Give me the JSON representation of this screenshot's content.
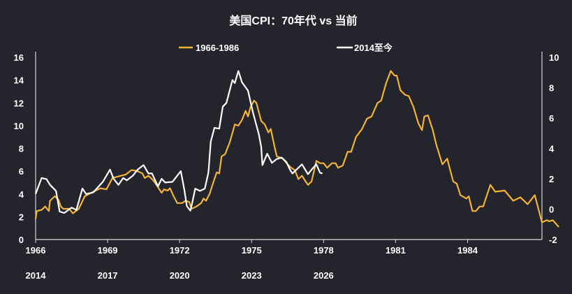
{
  "chart_data": {
    "type": "line",
    "title": "美国CPI：70年代 vs 当前",
    "legend_placement": "top",
    "grid": false,
    "x_axis_primary": {
      "ticks": [
        "1966",
        "1969",
        "1972",
        "1975",
        "1978",
        "1981",
        "1984"
      ],
      "range": [
        1966,
        1987.1
      ]
    },
    "x_axis_secondary": {
      "ticks": [
        "2014",
        "2017",
        "2020",
        "2023",
        "2026"
      ],
      "range": [
        2014,
        2035.1
      ]
    },
    "y_axis_left": {
      "range": [
        0,
        16
      ],
      "ticks": [
        "0",
        "2",
        "4",
        "6",
        "8",
        "10",
        "12",
        "14",
        "16"
      ]
    },
    "y_axis_right": {
      "range": [
        -2,
        10
      ],
      "ticks": [
        "-2",
        "0",
        "2",
        "4",
        "6",
        "8",
        "10"
      ]
    },
    "series": [
      {
        "name": "1966-1986",
        "color": "#f5b236",
        "axis": "left",
        "x_axis": "primary",
        "points": [
          [
            1966.0,
            1.8
          ],
          [
            1966.05,
            2.5
          ],
          [
            1966.25,
            2.6
          ],
          [
            1966.4,
            2.9
          ],
          [
            1966.55,
            2.5
          ],
          [
            1966.6,
            3.4
          ],
          [
            1966.8,
            3.8
          ],
          [
            1966.95,
            3.5
          ],
          [
            1967.05,
            2.9
          ],
          [
            1967.15,
            2.7
          ],
          [
            1967.4,
            2.7
          ],
          [
            1967.55,
            2.3
          ],
          [
            1967.8,
            2.7
          ],
          [
            1968.05,
            3.8
          ],
          [
            1968.4,
            4.2
          ],
          [
            1968.7,
            4.5
          ],
          [
            1968.95,
            4.4
          ],
          [
            1969.2,
            5.4
          ],
          [
            1969.55,
            5.6
          ],
          [
            1969.75,
            5.7
          ],
          [
            1970.0,
            6.1
          ],
          [
            1970.25,
            6.0
          ],
          [
            1970.45,
            5.8
          ],
          [
            1970.55,
            5.4
          ],
          [
            1970.7,
            5.6
          ],
          [
            1970.9,
            5.2
          ],
          [
            1971.1,
            4.6
          ],
          [
            1971.25,
            4.1
          ],
          [
            1971.35,
            4.4
          ],
          [
            1971.5,
            4.3
          ],
          [
            1971.6,
            4.5
          ],
          [
            1971.75,
            3.8
          ],
          [
            1971.9,
            3.2
          ],
          [
            1972.1,
            3.2
          ],
          [
            1972.25,
            3.4
          ],
          [
            1972.4,
            3.3
          ],
          [
            1972.5,
            2.7
          ],
          [
            1972.7,
            2.9
          ],
          [
            1972.9,
            3.2
          ],
          [
            1973.0,
            3.6
          ],
          [
            1973.1,
            3.4
          ],
          [
            1973.25,
            4.0
          ],
          [
            1973.4,
            5.0
          ],
          [
            1973.55,
            5.9
          ],
          [
            1973.65,
            5.8
          ],
          [
            1973.75,
            7.3
          ],
          [
            1973.9,
            7.5
          ],
          [
            1974.1,
            8.6
          ],
          [
            1974.3,
            10.1
          ],
          [
            1974.45,
            10.0
          ],
          [
            1974.6,
            10.5
          ],
          [
            1974.75,
            11.3
          ],
          [
            1974.85,
            10.8
          ],
          [
            1974.95,
            11.6
          ],
          [
            1975.1,
            12.2
          ],
          [
            1975.2,
            12.0
          ],
          [
            1975.4,
            10.4
          ],
          [
            1975.55,
            10.1
          ],
          [
            1975.7,
            9.4
          ],
          [
            1975.8,
            9.7
          ],
          [
            1975.95,
            8.2
          ],
          [
            1976.05,
            7.3
          ],
          [
            1976.3,
            7.1
          ],
          [
            1976.5,
            6.6
          ],
          [
            1976.65,
            6.3
          ],
          [
            1976.8,
            6.1
          ],
          [
            1976.95,
            5.3
          ],
          [
            1977.1,
            5.6
          ],
          [
            1977.25,
            5.1
          ],
          [
            1977.35,
            4.8
          ],
          [
            1977.5,
            5.1
          ],
          [
            1977.7,
            6.9
          ],
          [
            1977.85,
            6.7
          ],
          [
            1978.0,
            6.7
          ],
          [
            1978.15,
            6.3
          ],
          [
            1978.35,
            6.7
          ],
          [
            1978.5,
            6.7
          ],
          [
            1978.6,
            6.3
          ],
          [
            1978.8,
            6.5
          ],
          [
            1979.0,
            7.7
          ],
          [
            1979.15,
            7.7
          ],
          [
            1979.35,
            9.0
          ],
          [
            1979.6,
            9.7
          ],
          [
            1979.8,
            10.6
          ],
          [
            1980.0,
            10.8
          ],
          [
            1980.25,
            12.0
          ],
          [
            1980.4,
            12.2
          ],
          [
            1980.6,
            13.7
          ],
          [
            1980.8,
            14.8
          ],
          [
            1980.95,
            14.4
          ],
          [
            1981.05,
            14.4
          ],
          [
            1981.2,
            13.1
          ],
          [
            1981.4,
            12.7
          ],
          [
            1981.55,
            12.6
          ],
          [
            1981.75,
            11.6
          ],
          [
            1981.95,
            10.2
          ],
          [
            1982.1,
            9.6
          ],
          [
            1982.2,
            10.8
          ],
          [
            1982.35,
            10.9
          ],
          [
            1982.55,
            9.6
          ],
          [
            1982.7,
            8.3
          ],
          [
            1982.95,
            6.6
          ],
          [
            1983.15,
            7.1
          ],
          [
            1983.4,
            5.1
          ],
          [
            1983.55,
            4.9
          ],
          [
            1983.7,
            3.9
          ],
          [
            1983.95,
            3.6
          ],
          [
            1984.05,
            3.8
          ],
          [
            1984.2,
            2.5
          ],
          [
            1984.35,
            2.5
          ],
          [
            1984.5,
            2.9
          ],
          [
            1984.65,
            2.9
          ],
          [
            1984.95,
            4.8
          ],
          [
            1985.15,
            4.2
          ],
          [
            1985.55,
            4.3
          ],
          [
            1985.9,
            3.4
          ],
          [
            1986.2,
            3.7
          ],
          [
            1986.5,
            3.1
          ],
          [
            1986.8,
            3.9
          ],
          [
            1987.1,
            1.5
          ],
          [
            1987.3,
            1.7
          ],
          [
            1987.4,
            1.6
          ],
          [
            1987.55,
            1.7
          ],
          [
            1987.8,
            1.1
          ]
        ]
      },
      {
        "name": "2014至今",
        "color": "#ffffff",
        "axis": "right",
        "x_axis": "secondary",
        "points": [
          [
            2014.0,
            1.0
          ],
          [
            2014.25,
            2.05
          ],
          [
            2014.45,
            1.98
          ],
          [
            2014.6,
            1.6
          ],
          [
            2014.85,
            1.2
          ],
          [
            2015.0,
            -0.16
          ],
          [
            2015.2,
            -0.25
          ],
          [
            2015.5,
            0.1
          ],
          [
            2015.7,
            -0.05
          ],
          [
            2015.95,
            1.36
          ],
          [
            2016.1,
            1.0
          ],
          [
            2016.4,
            1.1
          ],
          [
            2016.6,
            1.45
          ],
          [
            2016.8,
            1.8
          ],
          [
            2017.1,
            2.6
          ],
          [
            2017.25,
            2.0
          ],
          [
            2017.45,
            1.6
          ],
          [
            2017.65,
            2.05
          ],
          [
            2017.8,
            1.9
          ],
          [
            2018.05,
            2.2
          ],
          [
            2018.25,
            2.6
          ],
          [
            2018.5,
            2.9
          ],
          [
            2018.7,
            2.35
          ],
          [
            2018.85,
            2.35
          ],
          [
            2019.1,
            1.5
          ],
          [
            2019.25,
            2.0
          ],
          [
            2019.4,
            1.75
          ],
          [
            2019.7,
            1.8
          ],
          [
            2020.05,
            2.5
          ],
          [
            2020.2,
            1.26
          ],
          [
            2020.3,
            0.2
          ],
          [
            2020.45,
            -0.1
          ],
          [
            2020.55,
            0.6
          ],
          [
            2020.65,
            1.35
          ],
          [
            2020.85,
            1.2
          ],
          [
            2021.05,
            1.35
          ],
          [
            2021.2,
            2.4
          ],
          [
            2021.3,
            4.45
          ],
          [
            2021.45,
            5.35
          ],
          [
            2021.65,
            5.3
          ],
          [
            2021.8,
            6.75
          ],
          [
            2021.95,
            7.0
          ],
          [
            2022.2,
            8.5
          ],
          [
            2022.3,
            8.3
          ],
          [
            2022.45,
            9.1
          ],
          [
            2022.6,
            8.35
          ],
          [
            2022.85,
            7.8
          ],
          [
            2023.05,
            6.4
          ],
          [
            2023.3,
            4.95
          ],
          [
            2023.4,
            4.1
          ],
          [
            2023.45,
            2.9
          ],
          [
            2023.65,
            3.65
          ],
          [
            2023.85,
            3.05
          ],
          [
            2024.05,
            3.3
          ],
          [
            2024.25,
            3.4
          ],
          [
            2024.45,
            3.1
          ],
          [
            2024.6,
            2.6
          ],
          [
            2024.7,
            2.35
          ],
          [
            2025.1,
            2.95
          ],
          [
            2025.35,
            2.3
          ],
          [
            2025.5,
            2.6
          ],
          [
            2025.7,
            2.95
          ],
          [
            2025.85,
            2.4
          ],
          [
            2025.95,
            2.35
          ]
        ]
      }
    ]
  }
}
